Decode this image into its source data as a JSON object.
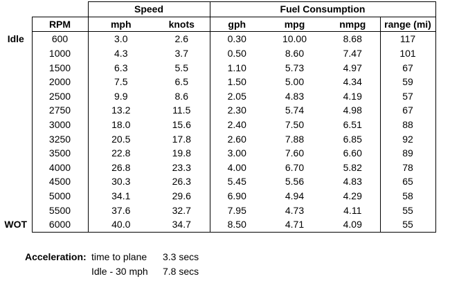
{
  "groups": {
    "speed": "Speed",
    "fuel": "Fuel Consumption"
  },
  "headers": [
    "RPM",
    "mph",
    "knots",
    "gph",
    "mpg",
    "nmpg",
    "range (mi)"
  ],
  "rows": [
    {
      "label": "Idle",
      "values": [
        "600",
        "3.0",
        "2.6",
        "0.30",
        "10.00",
        "8.68",
        "117"
      ]
    },
    {
      "label": "",
      "values": [
        "1000",
        "4.3",
        "3.7",
        "0.50",
        "8.60",
        "7.47",
        "101"
      ]
    },
    {
      "label": "",
      "values": [
        "1500",
        "6.3",
        "5.5",
        "1.10",
        "5.73",
        "4.97",
        "67"
      ]
    },
    {
      "label": "",
      "values": [
        "2000",
        "7.5",
        "6.5",
        "1.50",
        "5.00",
        "4.34",
        "59"
      ]
    },
    {
      "label": "",
      "values": [
        "2500",
        "9.9",
        "8.6",
        "2.05",
        "4.83",
        "4.19",
        "57"
      ]
    },
    {
      "label": "",
      "values": [
        "2750",
        "13.2",
        "11.5",
        "2.30",
        "5.74",
        "4.98",
        "67"
      ]
    },
    {
      "label": "",
      "values": [
        "3000",
        "18.0",
        "15.6",
        "2.40",
        "7.50",
        "6.51",
        "88"
      ]
    },
    {
      "label": "",
      "values": [
        "3250",
        "20.5",
        "17.8",
        "2.60",
        "7.88",
        "6.85",
        "92"
      ]
    },
    {
      "label": "",
      "values": [
        "3500",
        "22.8",
        "19.8",
        "3.00",
        "7.60",
        "6.60",
        "89"
      ]
    },
    {
      "label": "",
      "values": [
        "4000",
        "26.8",
        "23.3",
        "4.00",
        "6.70",
        "5.82",
        "78"
      ]
    },
    {
      "label": "",
      "values": [
        "4500",
        "30.3",
        "26.3",
        "5.45",
        "5.56",
        "4.83",
        "65"
      ]
    },
    {
      "label": "",
      "values": [
        "5000",
        "34.1",
        "29.6",
        "6.90",
        "4.94",
        "4.29",
        "58"
      ]
    },
    {
      "label": "",
      "values": [
        "5500",
        "37.6",
        "32.7",
        "7.95",
        "4.73",
        "4.11",
        "55"
      ]
    },
    {
      "label": "WOT",
      "values": [
        "6000",
        "40.0",
        "34.7",
        "8.50",
        "4.71",
        "4.09",
        "55"
      ]
    }
  ],
  "acceleration": {
    "label": "Acceleration:",
    "items": [
      {
        "name": "time to plane",
        "value": "3.3 secs"
      },
      {
        "name": "Idle - 30 mph",
        "value": "7.8 secs"
      }
    ]
  }
}
